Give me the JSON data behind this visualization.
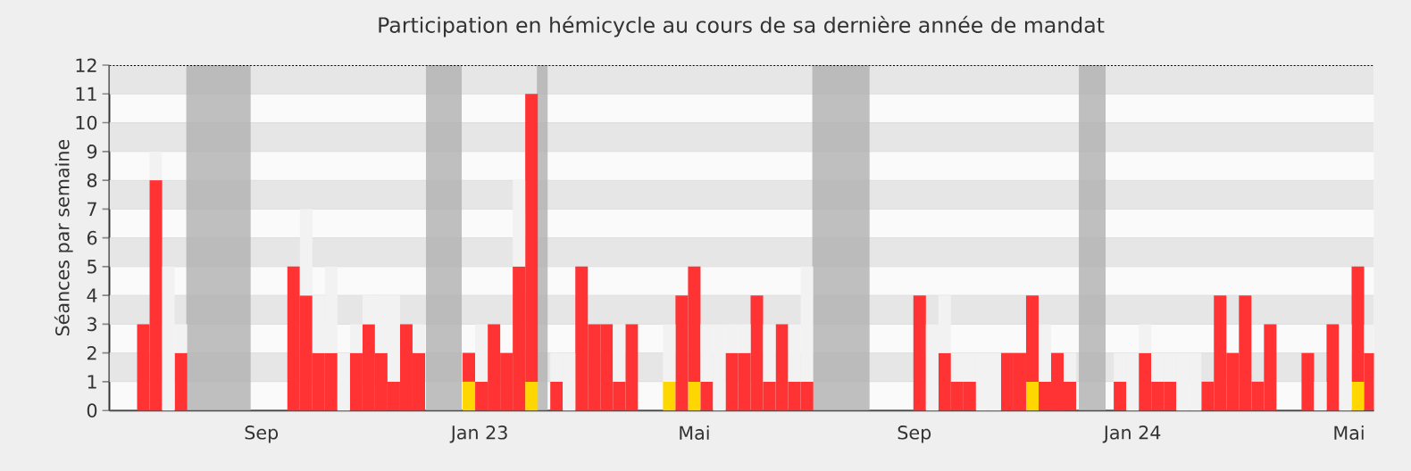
{
  "chart_data": {
    "type": "bar",
    "title": "Participation en hémicycle au cours de sa dernière année de mandat",
    "ylabel": "Séances par semaine",
    "x": [
      "2022-06-27",
      "2022-07-04",
      "2022-07-11",
      "2022-07-18",
      "2022-09-19",
      "2022-09-26",
      "2022-10-03",
      "2022-10-10",
      "2022-10-17",
      "2022-10-24",
      "2022-10-31",
      "2022-11-07",
      "2022-11-14",
      "2022-11-21",
      "2022-11-28",
      "2022-12-26",
      "2023-01-02",
      "2023-01-09",
      "2023-01-16",
      "2023-01-23",
      "2023-01-30",
      "2023-02-13",
      "2023-02-20",
      "2023-02-27",
      "2023-03-06",
      "2023-03-13",
      "2023-03-20",
      "2023-03-27",
      "2023-04-17",
      "2023-04-24",
      "2023-05-01",
      "2023-05-08",
      "2023-05-15",
      "2023-05-22",
      "2023-05-29",
      "2023-06-05",
      "2023-06-12",
      "2023-06-19",
      "2023-06-26",
      "2023-07-03",
      "2023-09-04",
      "2023-09-11",
      "2023-09-18",
      "2023-09-25",
      "2023-10-02",
      "2023-10-09",
      "2023-10-16",
      "2023-10-23",
      "2023-10-30",
      "2023-11-06",
      "2023-11-13",
      "2023-11-20",
      "2023-11-27",
      "2023-12-25",
      "2024-01-01",
      "2024-01-08",
      "2024-01-15",
      "2024-01-22",
      "2024-01-29",
      "2024-02-05",
      "2024-02-12",
      "2024-02-19",
      "2024-02-26",
      "2024-03-04",
      "2024-03-11",
      "2024-03-18",
      "2024-04-08",
      "2024-04-15",
      "2024-04-22",
      "2024-04-29",
      "2024-05-06",
      "2024-05-13"
    ],
    "series": [
      {
        "color": "#ffd700",
        "values": [
          null,
          null,
          null,
          null,
          null,
          null,
          null,
          null,
          null,
          null,
          null,
          null,
          null,
          null,
          null,
          1,
          null,
          null,
          null,
          null,
          1,
          null,
          null,
          null,
          null,
          null,
          null,
          null,
          1,
          null,
          1,
          null,
          null,
          null,
          null,
          null,
          null,
          null,
          null,
          null,
          null,
          null,
          null,
          null,
          null,
          null,
          null,
          null,
          null,
          1,
          null,
          null,
          null,
          null,
          null,
          null,
          null,
          null,
          null,
          null,
          null,
          null,
          null,
          null,
          null,
          null,
          null,
          null,
          null,
          null,
          1,
          null
        ]
      },
      {
        "color": "#ff3333",
        "values": [
          3,
          8,
          null,
          2,
          5,
          4,
          2,
          2,
          null,
          2,
          3,
          2,
          1,
          3,
          2,
          1,
          1,
          3,
          2,
          5,
          10,
          1,
          null,
          5,
          3,
          3,
          1,
          3,
          null,
          4,
          4,
          1,
          null,
          2,
          2,
          4,
          1,
          3,
          1,
          1,
          4,
          null,
          2,
          1,
          1,
          null,
          null,
          2,
          2,
          3,
          1,
          2,
          1,
          1,
          null,
          2,
          1,
          1,
          null,
          null,
          1,
          4,
          2,
          4,
          1,
          3,
          2,
          null,
          3,
          null,
          4,
          2
        ]
      },
      {
        "color": "#f2f2f2",
        "values": [
          null,
          1,
          5,
          1,
          null,
          3,
          2,
          3,
          2,
          1,
          1,
          2,
          3,
          null,
          1,
          null,
          2,
          null,
          null,
          3,
          null,
          1,
          2,
          null,
          null,
          null,
          2,
          null,
          2,
          null,
          null,
          2,
          3,
          1,
          1,
          null,
          2,
          null,
          2,
          4,
          null,
          3,
          2,
          1,
          1,
          2,
          2,
          null,
          null,
          null,
          2,
          null,
          1,
          1,
          2,
          1,
          1,
          1,
          2,
          2,
          null,
          null,
          null,
          null,
          null,
          null,
          null,
          1,
          null,
          3,
          null,
          1
        ]
      }
    ],
    "stacked": true,
    "xlim": [
      "2022-06-08",
      "2024-05-15"
    ],
    "xticks": [
      {
        "value": "2022-09-01",
        "label": "Sep"
      },
      {
        "value": "2023-01-01",
        "label": "Jan 23"
      },
      {
        "value": "2023-05-01",
        "label": "Mai"
      },
      {
        "value": "2023-09-01",
        "label": "Sep"
      },
      {
        "value": "2024-01-01",
        "label": "Jan 24"
      },
      {
        "value": "2024-05-01",
        "label": "Mai"
      }
    ],
    "ylim": [
      0,
      12
    ],
    "yticks": [
      0,
      1,
      2,
      3,
      4,
      5,
      6,
      7,
      8,
      9,
      10,
      11,
      12
    ],
    "grid": "y",
    "bands": [
      {
        "axis": "x",
        "from": "2022-07-21",
        "to": "2022-08-26",
        "color": "#b0b0b0"
      },
      {
        "axis": "x",
        "from": "2022-12-02",
        "to": "2022-12-22",
        "color": "#b0b0b0"
      },
      {
        "axis": "x",
        "from": "2023-02-02",
        "to": "2023-02-08",
        "color": "#b0b0b0"
      },
      {
        "axis": "x",
        "from": "2023-07-06",
        "to": "2023-08-07",
        "color": "#b0b0b0"
      },
      {
        "axis": "x",
        "from": "2023-12-02",
        "to": "2023-12-17",
        "color": "#b0b0b0"
      }
    ]
  }
}
